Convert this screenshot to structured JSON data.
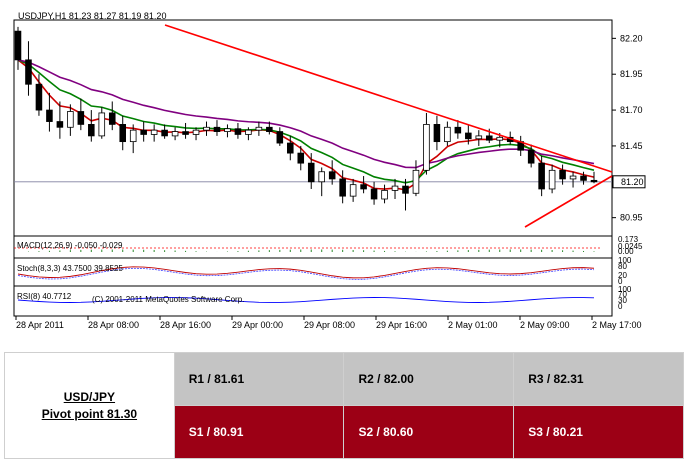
{
  "chart_data": {
    "type": "candlestick",
    "title": "USDJPY,H1  81.23 81.27 81.19 81.20",
    "current_price_label": "81.20",
    "y_ticks": [
      "82.20",
      "81.95",
      "81.70",
      "81.45",
      "81.20",
      "80.95"
    ],
    "ylim": [
      80.85,
      82.3
    ],
    "x_ticks": [
      "28 Apr 2011",
      "28 Apr 08:00",
      "28 Apr 16:00",
      "29 Apr 00:00",
      "29 Apr 08:00",
      "29 Apr 16:00",
      "2 May 01:00",
      "2 May 09:00",
      "2 May 17:00"
    ],
    "candles": [
      [
        82.25,
        82.28,
        81.98,
        82.05
      ],
      [
        82.05,
        82.18,
        81.8,
        81.88
      ],
      [
        81.88,
        81.95,
        81.66,
        81.7
      ],
      [
        81.7,
        81.82,
        81.55,
        81.62
      ],
      [
        81.62,
        81.76,
        81.5,
        81.58
      ],
      [
        81.58,
        81.74,
        81.52,
        81.69
      ],
      [
        81.69,
        81.78,
        81.56,
        81.6
      ],
      [
        81.6,
        81.7,
        81.48,
        81.52
      ],
      [
        81.52,
        81.72,
        81.5,
        81.68
      ],
      [
        81.68,
        81.76,
        81.56,
        81.6
      ],
      [
        81.6,
        81.66,
        81.42,
        81.48
      ],
      [
        81.48,
        81.6,
        81.4,
        81.56
      ],
      [
        81.56,
        81.62,
        81.48,
        81.53
      ],
      [
        81.53,
        81.6,
        81.48,
        81.56
      ],
      [
        81.56,
        81.6,
        81.5,
        81.52
      ],
      [
        81.52,
        81.58,
        81.49,
        81.55
      ],
      [
        81.55,
        81.61,
        81.5,
        81.53
      ],
      [
        81.53,
        81.58,
        81.49,
        81.56
      ],
      [
        81.56,
        81.62,
        81.52,
        81.58
      ],
      [
        81.58,
        81.63,
        81.52,
        81.55
      ],
      [
        81.55,
        81.6,
        81.51,
        81.57
      ],
      [
        81.57,
        81.61,
        81.5,
        81.53
      ],
      [
        81.53,
        81.58,
        81.49,
        81.56
      ],
      [
        81.56,
        81.62,
        81.52,
        81.58
      ],
      [
        81.58,
        81.62,
        81.53,
        81.55
      ],
      [
        81.55,
        81.58,
        81.45,
        81.47
      ],
      [
        81.47,
        81.52,
        81.35,
        81.4
      ],
      [
        81.4,
        81.45,
        81.28,
        81.33
      ],
      [
        81.33,
        81.4,
        81.15,
        81.2
      ],
      [
        81.2,
        81.3,
        81.1,
        81.27
      ],
      [
        81.27,
        81.35,
        81.18,
        81.22
      ],
      [
        81.22,
        81.28,
        81.05,
        81.1
      ],
      [
        81.1,
        81.22,
        81.06,
        81.18
      ],
      [
        81.18,
        81.24,
        81.12,
        81.15
      ],
      [
        81.15,
        81.2,
        81.04,
        81.08
      ],
      [
        81.08,
        81.18,
        81.05,
        81.14
      ],
      [
        81.14,
        81.22,
        81.08,
        81.17
      ],
      [
        81.17,
        81.22,
        81.0,
        81.12
      ],
      [
        81.12,
        81.35,
        81.1,
        81.28
      ],
      [
        81.28,
        81.68,
        81.25,
        81.6
      ],
      [
        81.6,
        81.66,
        81.42,
        81.48
      ],
      [
        81.48,
        81.62,
        81.45,
        81.58
      ],
      [
        81.58,
        81.63,
        81.5,
        81.54
      ],
      [
        81.54,
        81.6,
        81.46,
        81.5
      ],
      [
        81.5,
        81.56,
        81.45,
        81.52
      ],
      [
        81.52,
        81.57,
        81.47,
        81.49
      ],
      [
        81.49,
        81.54,
        81.44,
        81.51
      ],
      [
        81.51,
        81.55,
        81.46,
        81.48
      ],
      [
        81.48,
        81.52,
        81.38,
        81.42
      ],
      [
        81.42,
        81.46,
        81.3,
        81.33
      ],
      [
        81.33,
        81.38,
        81.1,
        81.15
      ],
      [
        81.15,
        81.32,
        81.12,
        81.28
      ],
      [
        81.28,
        81.32,
        81.18,
        81.22
      ],
      [
        81.22,
        81.27,
        81.16,
        81.24
      ],
      [
        81.24,
        81.27,
        81.18,
        81.21
      ],
      [
        81.21,
        81.27,
        81.19,
        81.2
      ]
    ],
    "indicators": [
      {
        "name": "MACD(12,26,9) -0.050 -0.029",
        "levels": [
          "0.173",
          "0.0245",
          "0.00"
        ]
      },
      {
        "name": "Stoch(8,3,3) 43.7500 39.8525",
        "levels": [
          "100",
          "80",
          "20",
          "0"
        ]
      },
      {
        "name": "RSI(8) 40.7712",
        "levels": [
          "100",
          "70",
          "30",
          "0"
        ]
      }
    ],
    "watermark": "(C) 2001-2011 MetaQuotes Software Corp.",
    "colors": {
      "bull_candle": "#ffffff",
      "bear_candle": "#000000",
      "ma_fast": "#cc0000",
      "ma_mid": "#008000",
      "ma_slow": "#800080",
      "trendline": "#ff0000",
      "rsi": "#0000ff"
    }
  },
  "pivot_table": {
    "pair": "USD/JPY",
    "pivot": "Pivot point 81.30",
    "r1": "R1 / 81.61",
    "r2": "R2 / 82.00",
    "r3": "R3 / 82.31",
    "s1": "S1 / 80.91",
    "s2": "S2 / 80.60",
    "s3": "S3 / 80.21",
    "colors": {
      "resistance_bg": "#c4c4c4",
      "support_bg": "#9c0015",
      "support_text": "#ffffff"
    }
  }
}
